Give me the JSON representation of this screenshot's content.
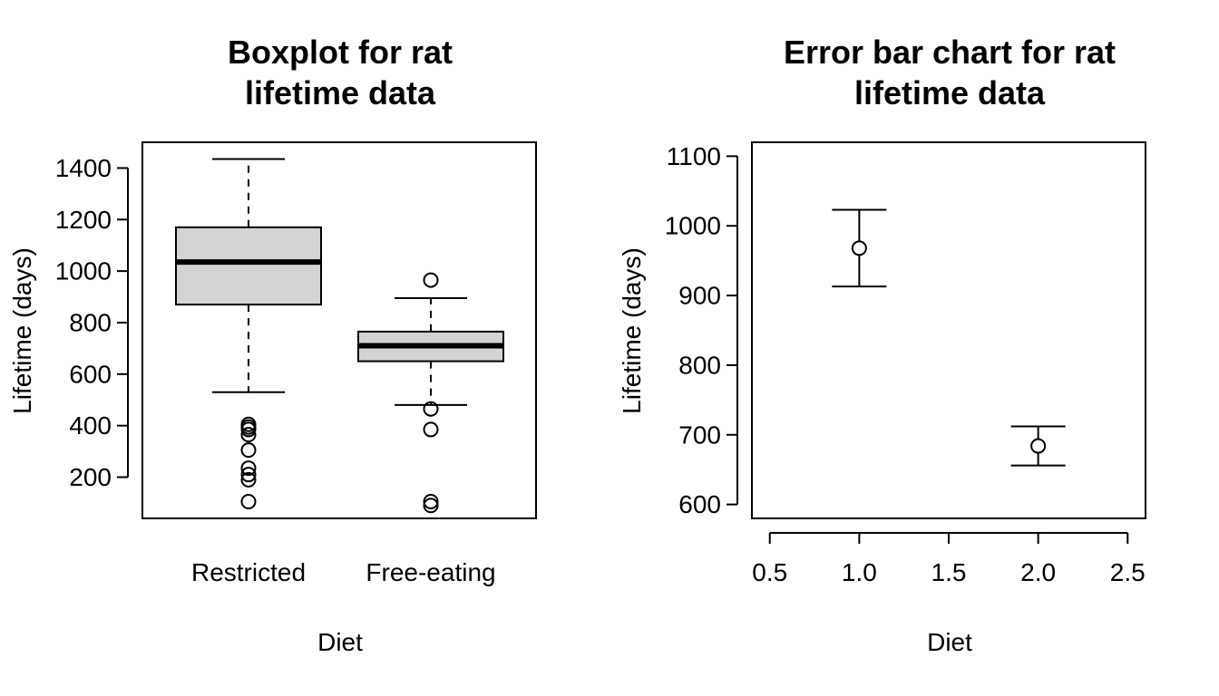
{
  "colors": {
    "box_fill": "#d3d3d3",
    "stroke": "#000000",
    "background": "#ffffff"
  },
  "chart_data": [
    {
      "type": "boxplot",
      "title_lines": [
        "Boxplot for rat",
        "lifetime data"
      ],
      "xlabel": "Diet",
      "ylabel": "Lifetime (days)",
      "ylim": [
        40,
        1500
      ],
      "yticks": [
        200,
        400,
        600,
        800,
        1000,
        1200,
        1400
      ],
      "ytick_labels": [
        "200",
        "400",
        "600",
        "800",
        "1000",
        "1200",
        "1400"
      ],
      "categories": [
        "Restricted",
        "Free-eating"
      ],
      "groups": [
        {
          "name": "Restricted",
          "whisker_low": 530,
          "q1": 870,
          "median": 1035,
          "q3": 1170,
          "whisker_high": 1435,
          "outliers": [
            105,
            190,
            210,
            235,
            305,
            365,
            385,
            395,
            405
          ]
        },
        {
          "name": "Free-eating",
          "whisker_low": 480,
          "q1": 650,
          "median": 710,
          "q3": 765,
          "whisker_high": 895,
          "outliers": [
            90,
            105,
            385,
            465,
            965
          ]
        }
      ]
    },
    {
      "type": "errorbar",
      "title_lines": [
        "Error bar chart for rat",
        "lifetime data"
      ],
      "xlabel": "Diet",
      "ylabel": "Lifetime (days)",
      "xlim": [
        0.4,
        2.6
      ],
      "ylim": [
        580,
        1120
      ],
      "xticks": [
        0.5,
        1.0,
        1.5,
        2.0,
        2.5
      ],
      "xtick_labels": [
        "0.5",
        "1.0",
        "1.5",
        "2.0",
        "2.5"
      ],
      "yticks": [
        600,
        700,
        800,
        900,
        1000,
        1100
      ],
      "ytick_labels": [
        "600",
        "700",
        "800",
        "900",
        "1000",
        "1100"
      ],
      "points": [
        {
          "x": 1.0,
          "mean": 968,
          "lower": 913,
          "upper": 1023
        },
        {
          "x": 2.0,
          "mean": 684,
          "lower": 656,
          "upper": 712
        }
      ]
    }
  ]
}
